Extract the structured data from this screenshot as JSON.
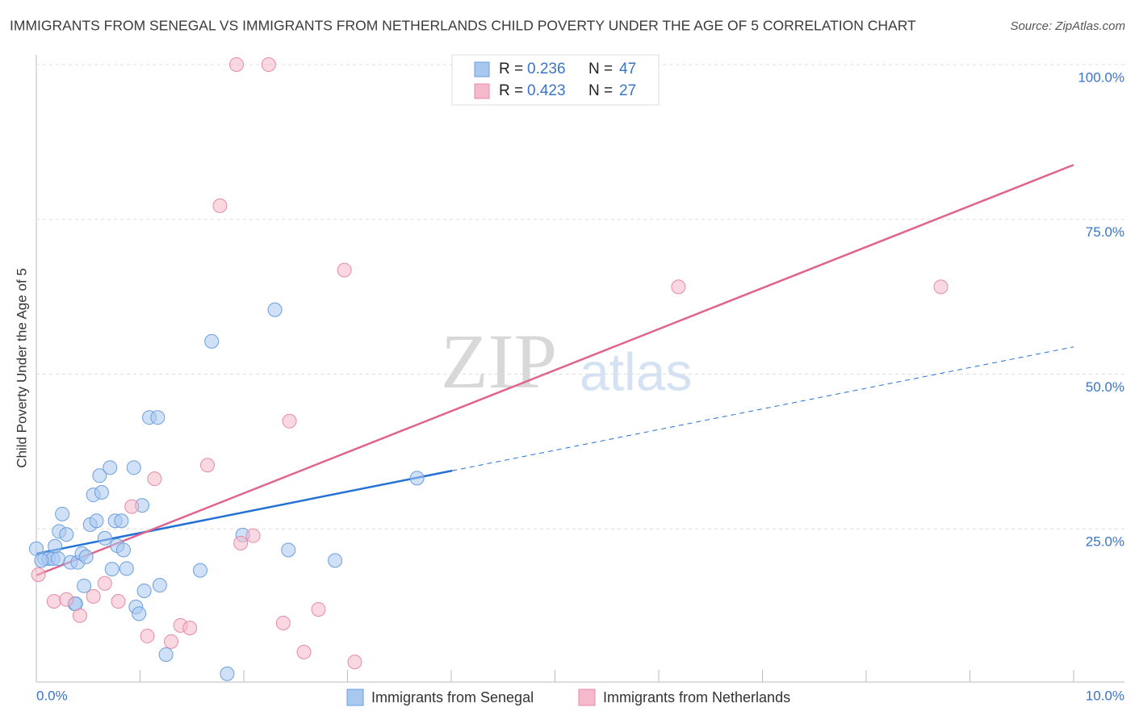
{
  "chart_data": {
    "type": "scatter",
    "title": "IMMIGRANTS FROM SENEGAL VS IMMIGRANTS FROM NETHERLANDS CHILD POVERTY UNDER THE AGE OF 5 CORRELATION CHART",
    "source": "Source: ZipAtlas.com",
    "y_label": "Child Poverty Under the Age of 5",
    "watermark": {
      "bold": "ZIP",
      "light": "atlas"
    },
    "xlim": [
      0,
      10
    ],
    "ylim": [
      0,
      100
    ],
    "xticks": [
      {
        "value": 0,
        "label": "0.0%"
      },
      {
        "value": 10,
        "label": "10.0%"
      }
    ],
    "x_minor_ticks": [
      1,
      2,
      3,
      4,
      5,
      6,
      7,
      8,
      9
    ],
    "yticks": [
      {
        "value": 25,
        "label": "25.0%"
      },
      {
        "value": 50,
        "label": "50.0%"
      },
      {
        "value": 75,
        "label": "75.0%"
      },
      {
        "value": 100,
        "label": "100.0%"
      }
    ],
    "grid": true,
    "series": [
      {
        "name": "Immigrants from Senegal",
        "color": "#6a9fe0",
        "fill": "#a9c8f0",
        "line_color": "#2471d4",
        "r_label": "R =",
        "r": 0.236,
        "n_label": "N =",
        "n": 47,
        "x": [
          0,
          0.08,
          0.12,
          0.16,
          0.05,
          0.18,
          0.21,
          0.25,
          0.22,
          0.29,
          0.33,
          0.4,
          0.44,
          0.48,
          0.46,
          0.37,
          0.38,
          0.52,
          0.58,
          0.55,
          0.63,
          0.61,
          0.71,
          0.66,
          0.73,
          0.76,
          0.82,
          0.78,
          0.84,
          0.87,
          0.94,
          1.02,
          0.96,
          0.99,
          1.04,
          1.09,
          1.17,
          1.19,
          1.25,
          1.58,
          1.69,
          1.84,
          1.99,
          2.3,
          2.43,
          2.88,
          3.67
        ],
        "values": [
          21.8,
          20.2,
          20.2,
          20.2,
          19.9,
          22.2,
          20.2,
          27.4,
          24.6,
          24.1,
          19.6,
          19.6,
          21.0,
          20.5,
          15.8,
          12.9,
          12.9,
          25.7,
          26.3,
          30.5,
          30.9,
          33.6,
          34.9,
          23.5,
          18.5,
          26.3,
          26.3,
          22.3,
          21.6,
          18.6,
          34.9,
          28.8,
          12.4,
          11.3,
          15.0,
          43.0,
          43.0,
          15.9,
          4.7,
          18.3,
          55.3,
          1.6,
          24.0,
          60.4,
          21.6,
          19.9,
          33.2
        ],
        "trend_line": {
          "x": [
            0,
            4.01,
            10
          ],
          "y": [
            21.0,
            34.4,
            54.4
          ]
        }
      },
      {
        "name": "Immigrants from Netherlands",
        "color": "#e88aa8",
        "fill": "#f6b8cb",
        "line_color": "#e0648e",
        "r_label": "R =",
        "r": 0.423,
        "n_label": "N =",
        "n": 27,
        "x": [
          0.02,
          0.17,
          0.29,
          0.42,
          0.55,
          0.66,
          0.79,
          1.07,
          1.14,
          1.3,
          1.39,
          1.48,
          0.92,
          1.65,
          1.77,
          1.93,
          2.24,
          1.97,
          2.09,
          2.38,
          2.44,
          2.58,
          2.72,
          2.97,
          3.07,
          6.19,
          8.72
        ],
        "values": [
          17.6,
          13.3,
          13.6,
          11.0,
          14.1,
          16.2,
          13.3,
          7.7,
          33.1,
          6.8,
          9.4,
          9.0,
          28.6,
          35.3,
          77.2,
          100,
          100,
          22.7,
          23.9,
          9.8,
          42.4,
          5.1,
          12.0,
          66.8,
          3.5,
          64.1,
          64.1
        ],
        "trend_line": {
          "x": [
            0,
            10
          ],
          "y": [
            17.5,
            83.8
          ]
        }
      }
    ]
  }
}
